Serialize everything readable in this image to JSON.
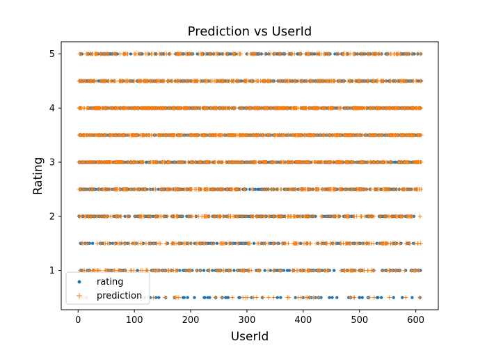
{
  "chart_data": {
    "type": "scatter",
    "title": "Prediction vs UserId",
    "xlabel": "UserId",
    "ylabel": "Rating",
    "xlim": [
      -30,
      640
    ],
    "ylim": [
      0.275,
      5.225
    ],
    "xticks": [
      0,
      100,
      200,
      300,
      400,
      500,
      600
    ],
    "yticks": [
      1,
      2,
      3,
      4,
      5
    ],
    "rating_levels": [
      0.5,
      1,
      1.5,
      2,
      2.5,
      3,
      3.5,
      4,
      4.5,
      5
    ],
    "user_range": [
      1,
      610
    ],
    "series": [
      {
        "name": "rating",
        "marker": "dot",
        "color": "#1f77b4",
        "note_density": "ratings at each 0.5 level across all users"
      },
      {
        "name": "prediction",
        "marker": "plus",
        "color": "#ff7f0e",
        "note_density": "predictions rounded to 0.5 levels; sparse at 0.5, dense at 3-4"
      }
    ],
    "legend": {
      "position": "lower-left"
    },
    "grid": false
  }
}
